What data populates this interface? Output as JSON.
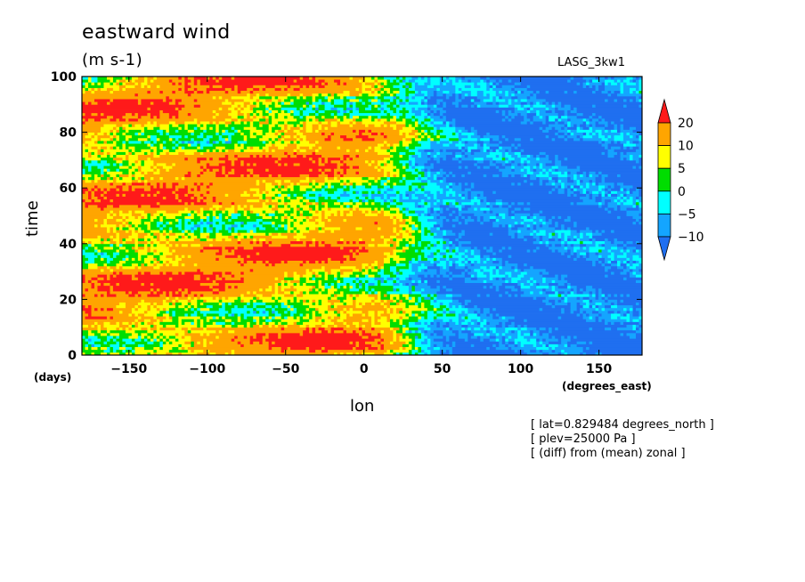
{
  "chart_data": {
    "type": "heatmap",
    "title": "eastward wind",
    "units": "(m s-1)",
    "model": "LASG_3kw1",
    "xlabel": "lon",
    "ylabel": "time",
    "xunit": "(degrees_east)",
    "yunit": "(days)",
    "xlim": [
      -180,
      177.5
    ],
    "ylim": [
      0,
      100
    ],
    "xticks": [
      -150,
      -100,
      -50,
      0,
      50,
      100,
      150
    ],
    "yticks": [
      0,
      20,
      40,
      60,
      80,
      100
    ],
    "colorbar": {
      "levels": [
        -10,
        -5,
        0,
        5,
        10,
        20
      ],
      "labels": [
        "20",
        "10",
        "5",
        "0",
        "−5",
        "−10"
      ],
      "colors": [
        "#1f6ff0",
        "#14a5ff",
        "#00ffff",
        "#00dd00",
        "#ffff00",
        "#ffa500",
        "#ff1a1a"
      ]
    },
    "notes": [
      "[ lat=0.829484 degrees_north ]",
      "[ plev=25000 Pa ]",
      "[ (diff) from (mean) zonal ]"
    ]
  }
}
